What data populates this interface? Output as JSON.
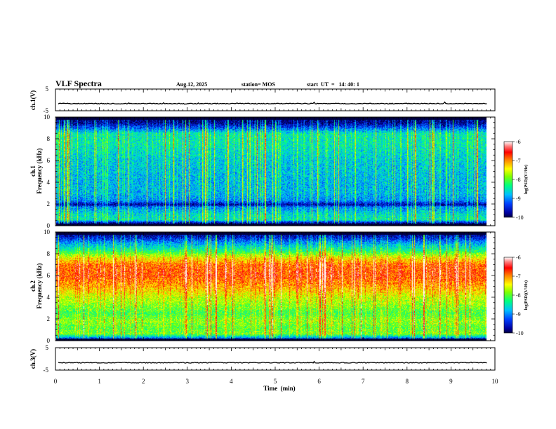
{
  "header": {
    "title": "VLF Spectra",
    "date": "Aug.12, 2025",
    "station": "station= MOS",
    "start": "start  UT  =   14: 40: 1"
  },
  "chart_data": [
    {
      "type": "line",
      "name": "ch1-waveform",
      "ylabel": "ch.1(V)",
      "ylim": [
        -5,
        5
      ],
      "yticks": [
        "5",
        "-5"
      ],
      "baseline": -1.7
    },
    {
      "type": "heatmap",
      "name": "ch1-spectrogram",
      "ylabel": "Frequency (kHz)",
      "ylabel_prefix": "ch.1",
      "ylim": [
        0,
        10
      ],
      "yticks": [
        "0",
        "2",
        "4",
        "6",
        "8",
        "10"
      ],
      "colorbar": {
        "label": "log(PSD)(V²/Hz)",
        "min": -10,
        "max": -6,
        "ticks": [
          "-6",
          "-7",
          "-8",
          "-9",
          "-10"
        ]
      },
      "level_profile": [
        {
          "f": 0.0,
          "v": -10.0
        },
        {
          "f": 0.2,
          "v": -9.9
        },
        {
          "f": 0.5,
          "v": -8.6
        },
        {
          "f": 1.0,
          "v": -8.7
        },
        {
          "f": 1.5,
          "v": -9.0
        },
        {
          "f": 1.7,
          "v": -9.1
        },
        {
          "f": 1.9,
          "v": -9.9
        },
        {
          "f": 2.3,
          "v": -9.1
        },
        {
          "f": 3.0,
          "v": -8.9
        },
        {
          "f": 4.0,
          "v": -8.9
        },
        {
          "f": 6.0,
          "v": -8.8
        },
        {
          "f": 7.5,
          "v": -8.6
        },
        {
          "f": 8.5,
          "v": -8.6
        },
        {
          "f": 9.0,
          "v": -9.3
        },
        {
          "f": 9.5,
          "v": -9.9
        },
        {
          "f": 10.0,
          "v": -10.0
        }
      ]
    },
    {
      "type": "heatmap",
      "name": "ch2-spectrogram",
      "ylabel": "Frequency (kHz)",
      "ylabel_prefix": "ch.2",
      "ylim": [
        0,
        10
      ],
      "yticks": [
        "0",
        "2",
        "4",
        "6",
        "8",
        "10"
      ],
      "colorbar": {
        "label": "log(PSD)(V²/Hz)",
        "min": -10,
        "max": -6,
        "ticks": [
          "-6",
          "-7",
          "-8",
          "-9",
          "-10"
        ]
      },
      "level_profile": [
        {
          "f": 0.0,
          "v": -10.0
        },
        {
          "f": 0.2,
          "v": -9.2
        },
        {
          "f": 0.6,
          "v": -8.0
        },
        {
          "f": 1.2,
          "v": -8.1
        },
        {
          "f": 1.8,
          "v": -7.9
        },
        {
          "f": 2.5,
          "v": -8.2
        },
        {
          "f": 3.0,
          "v": -8.0
        },
        {
          "f": 4.0,
          "v": -7.7
        },
        {
          "f": 5.0,
          "v": -7.2
        },
        {
          "f": 6.0,
          "v": -6.9
        },
        {
          "f": 7.0,
          "v": -7.0
        },
        {
          "f": 7.6,
          "v": -7.5
        },
        {
          "f": 8.3,
          "v": -8.4
        },
        {
          "f": 9.0,
          "v": -9.0
        },
        {
          "f": 9.6,
          "v": -9.7
        },
        {
          "f": 10.0,
          "v": -10.0
        }
      ]
    },
    {
      "type": "line",
      "name": "ch3-waveform",
      "ylabel": "ch.3(V)",
      "ylim": [
        -5,
        5
      ],
      "yticks": [
        "5",
        "-5"
      ],
      "baseline": -1.7
    }
  ],
  "xaxis": {
    "label": "Time  (min)",
    "xlim": [
      0,
      10
    ],
    "ticks": [
      "0",
      "1",
      "2",
      "3",
      "4",
      "5",
      "6",
      "7",
      "8",
      "9",
      "10"
    ],
    "data_end": 9.83
  }
}
